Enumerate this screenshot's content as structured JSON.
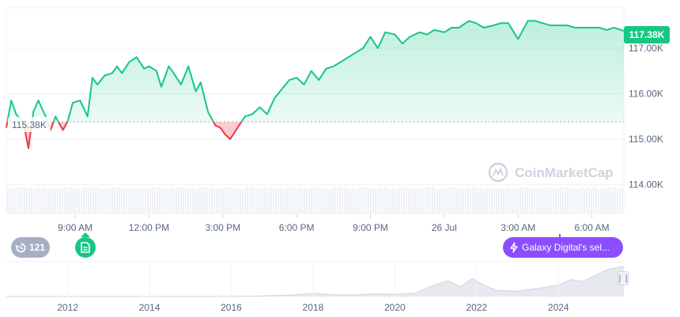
{
  "chart_data": {
    "type": "area",
    "title": "",
    "xlabel": "",
    "ylabel": "",
    "ylim": [
      113.35,
      117.85
    ],
    "yticks": [
      "117.00K",
      "116.00K",
      "115.00K",
      "114.00K"
    ],
    "ytick_values": [
      117.0,
      116.0,
      115.0,
      114.0
    ],
    "x_tick_labels": [
      "9:00 AM",
      "12:00 PM",
      "3:00 PM",
      "6:00 PM",
      "9:00 PM",
      "26 Jul",
      "3:00 AM",
      "6:00 AM"
    ],
    "x_tick_hours": [
      9,
      12,
      15,
      18,
      21,
      24,
      27,
      30
    ],
    "x_range_hours": [
      6.2,
      31.3
    ],
    "baseline_value": 115.38,
    "baseline_label": "115.38K",
    "current_value": 117.38,
    "current_label": "117.38K",
    "colors": {
      "up": "#16c784",
      "down": "#ea3943"
    },
    "grid": true,
    "series": [
      {
        "x": [
          6.2,
          6.4,
          6.6,
          6.9,
          7.1,
          7.3,
          7.5,
          7.8,
          8.0,
          8.2,
          8.5,
          8.7,
          8.9,
          9.2,
          9.5,
          9.7,
          9.9,
          10.2,
          10.5,
          10.7,
          10.9,
          11.2,
          11.5,
          11.8,
          12.0,
          12.3,
          12.5,
          12.8,
          13.0,
          13.3,
          13.6,
          13.9,
          14.1,
          14.4,
          14.7,
          14.9,
          15.1,
          15.3,
          15.6,
          15.9,
          16.2,
          16.5,
          16.8,
          17.1,
          17.4,
          17.7,
          18.0,
          18.3,
          18.6,
          18.9,
          19.2,
          19.5,
          19.8,
          20.1,
          20.4,
          20.7,
          21.0,
          21.3,
          21.6,
          22.0,
          22.3,
          22.6,
          23.0,
          23.3,
          23.6,
          24.0,
          24.3,
          24.6,
          25.0,
          25.3,
          25.6,
          26.0,
          26.3,
          26.6,
          27.0,
          27.2,
          27.4,
          27.7,
          28.0,
          28.3,
          28.6,
          29.0,
          29.3,
          29.6,
          30.0,
          30.3,
          30.6,
          30.9,
          31.3
        ],
        "y": [
          115.25,
          115.85,
          115.55,
          115.35,
          114.8,
          115.6,
          115.85,
          115.5,
          115.2,
          115.5,
          115.2,
          115.4,
          115.8,
          115.85,
          115.5,
          116.35,
          116.2,
          116.4,
          116.45,
          116.6,
          116.45,
          116.7,
          116.8,
          116.55,
          116.6,
          116.5,
          116.15,
          116.6,
          116.45,
          116.2,
          116.6,
          116.05,
          116.25,
          115.6,
          115.3,
          115.25,
          115.1,
          115.0,
          115.25,
          115.5,
          115.55,
          115.7,
          115.55,
          115.9,
          116.1,
          116.3,
          116.35,
          116.2,
          116.5,
          116.3,
          116.55,
          116.6,
          116.7,
          116.8,
          116.9,
          117.0,
          117.25,
          117.0,
          117.35,
          117.3,
          117.1,
          117.25,
          117.35,
          117.3,
          117.4,
          117.35,
          117.45,
          117.45,
          117.6,
          117.55,
          117.45,
          117.5,
          117.55,
          117.55,
          117.2,
          117.4,
          117.6,
          117.6,
          117.55,
          117.5,
          117.5,
          117.5,
          117.45,
          117.45,
          117.45,
          117.45,
          117.4,
          117.45,
          117.38
        ]
      }
    ],
    "volume_present": true,
    "overview": {
      "type": "area",
      "x_tick_labels": [
        "2012",
        "2014",
        "2016",
        "2018",
        "2020",
        "2022",
        "2024"
      ],
      "x_tick_years": [
        2012,
        2014,
        2016,
        2018,
        2020,
        2022,
        2024
      ],
      "x_range_years": [
        2010.5,
        2025.6
      ],
      "x": [
        2010.5,
        2011.5,
        2012.5,
        2013.5,
        2014.5,
        2015.5,
        2016.5,
        2017.5,
        2018.0,
        2018.5,
        2019.0,
        2019.5,
        2020.0,
        2020.5,
        2021.0,
        2021.3,
        2021.6,
        2021.9,
        2022.2,
        2022.5,
        2023.0,
        2023.5,
        2024.0,
        2024.3,
        2024.6,
        2024.9,
        2025.2,
        2025.6
      ],
      "y": [
        0.0,
        0.0,
        0.0,
        0.0,
        0.0,
        0.0,
        0.01,
        0.05,
        0.1,
        0.06,
        0.05,
        0.09,
        0.07,
        0.11,
        0.4,
        0.53,
        0.32,
        0.6,
        0.36,
        0.2,
        0.18,
        0.27,
        0.38,
        0.56,
        0.5,
        0.7,
        0.9,
        1.0
      ]
    }
  },
  "labels": {
    "price_badge": "117.38K",
    "base_badge": "115.38K",
    "watermark": "CoinMarketCap",
    "history_count": "121",
    "news_title": "Galaxy Digital's sel..."
  },
  "icons": {
    "history": "history-icon",
    "document": "document-icon",
    "lightning": "lightning-icon",
    "watermark_logo": "coinmarketcap-logo-icon",
    "scroll_handle": "grip-icon"
  }
}
